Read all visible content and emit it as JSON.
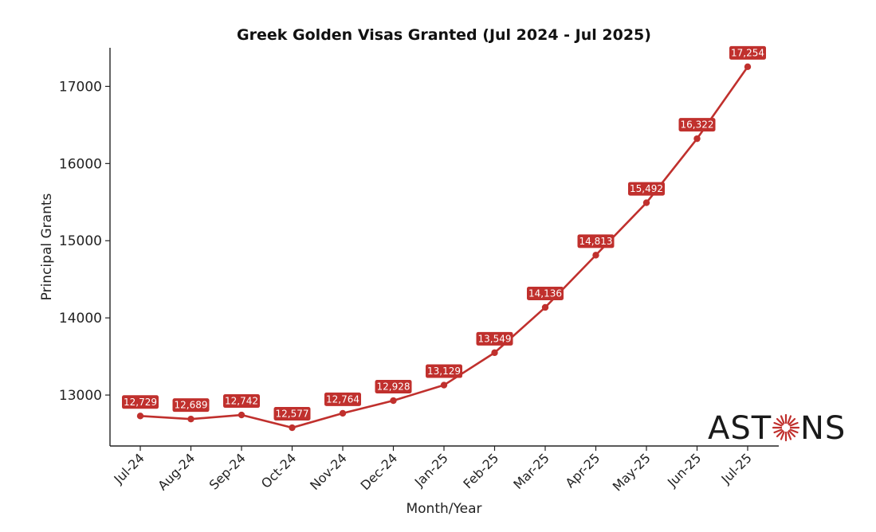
{
  "chart_data": {
    "type": "line",
    "title": "Greek Golden Visas Granted (Jul 2024 - Jul 2025)",
    "xlabel": "Month/Year",
    "ylabel": "Principal Grants",
    "categories": [
      "Jul-24",
      "Aug-24",
      "Sep-24",
      "Oct-24",
      "Nov-24",
      "Dec-24",
      "Jan-25",
      "Feb-25",
      "Mar-25",
      "Apr-25",
      "May-25",
      "Jun-25",
      "Jul-25"
    ],
    "values": [
      12729,
      12689,
      12742,
      12577,
      12764,
      12928,
      13129,
      13549,
      14136,
      14813,
      15492,
      16322,
      17254
    ],
    "data_labels": [
      "12,729",
      "12,689",
      "12,742",
      "12,577",
      "12,764",
      "12,928",
      "13,129",
      "13,549",
      "14,136",
      "14,813",
      "15,492",
      "16,322",
      "17,254"
    ],
    "yticks": [
      13000,
      14000,
      15000,
      16000,
      17000
    ],
    "ylim": [
      12340,
      17500
    ],
    "grid": false,
    "line_color": "#c0302d",
    "label_bg_color": "#c0302d"
  },
  "logo": {
    "text_left": "AST",
    "text_right": "NS",
    "accent_color": "#c0302d"
  }
}
